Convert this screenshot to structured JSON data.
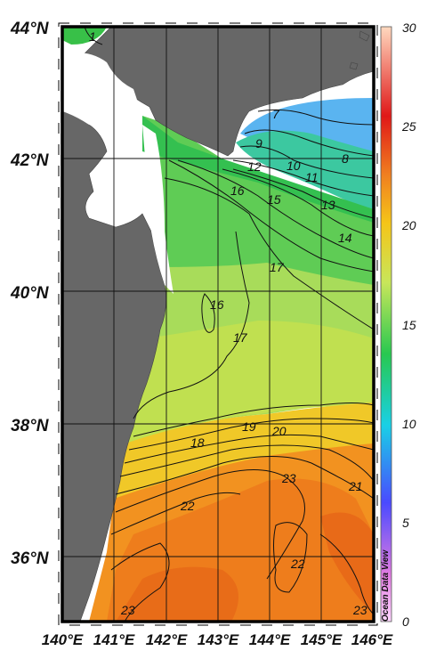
{
  "map": {
    "lat_labels": [
      "44°N",
      "42°N",
      "40°N",
      "38°N",
      "36°N"
    ],
    "lon_labels": [
      "140°E",
      "141°E",
      "142°E",
      "143°E",
      "144°E",
      "145°E",
      "146°E"
    ],
    "contour_labels": [
      "7",
      "9",
      "8",
      "10",
      "11",
      "12",
      "13",
      "14",
      "15",
      "16",
      "17",
      "16",
      "17",
      "18",
      "19",
      "20",
      "21",
      "22",
      "23",
      "22",
      "23",
      "23",
      "1"
    ]
  },
  "colorbar": {
    "tick_labels": [
      "30",
      "25",
      "20",
      "15",
      "10",
      "5",
      "0"
    ],
    "colors": [
      "#ff99ff",
      "#3a3aff",
      "#19e6e6",
      "#22c55e",
      "#c5e65a",
      "#f2c21a",
      "#f07a1a",
      "#e01010",
      "#ffd9bf"
    ]
  },
  "watermark": "Ocean Data View"
}
